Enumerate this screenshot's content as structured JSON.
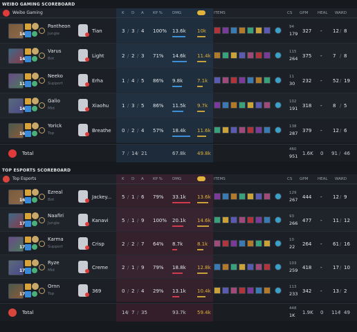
{
  "colors": {
    "blue_accent": "#3e8fd6",
    "red_accent": "#c23a5f",
    "gold": "#e3b33c",
    "bar_blue": "#3e8fd6",
    "bar_red": "#d23b4e"
  },
  "boards": [
    {
      "title": "WEIBO GAMING SCOREBOARD",
      "team_name": "Weibo Gaming",
      "side": "blue",
      "headers": {
        "k": "K",
        "d": "D",
        "a": "A",
        "kp": "KP %",
        "dmg": "DMG",
        "gold_icon": "gold-icon",
        "items": "ITEMS",
        "cs": "CS",
        "gpm": "GPM",
        "heal": "HEAL",
        "ward": "WARD"
      },
      "players": [
        {
          "champion": "Pantheon",
          "role": "Jungle",
          "level": "14",
          "player": "Tian",
          "k": "3",
          "d": "3",
          "a": "4",
          "kp": "100%",
          "dmg": "13.6k",
          "dmg_pct": 74,
          "gold": "10k",
          "gold_pct": 58,
          "cs_top": "94",
          "cs": "179",
          "gpm": "327",
          "heal": "-",
          "wards_placed": "12",
          "wards_killed": "8"
        },
        {
          "champion": "Varus",
          "role": "Bot",
          "level": "14",
          "player": "Light",
          "k": "2",
          "d": "2",
          "a": "3",
          "kp": "71%",
          "dmg": "14.6k",
          "dmg_pct": 80,
          "gold": "11.4k",
          "gold_pct": 66,
          "cs_top": "115",
          "cs": "264",
          "gpm": "375",
          "heal": "-",
          "wards_placed": "7",
          "wards_killed": "8"
        },
        {
          "champion": "Neeko",
          "role": "Support",
          "level": "11",
          "player": "Erha",
          "k": "1",
          "d": "4",
          "a": "5",
          "kp": "86%",
          "dmg": "9.8k",
          "dmg_pct": 53,
          "gold": "7.1k",
          "gold_pct": 41,
          "cs_top": "11",
          "cs": "30",
          "gpm": "232",
          "heal": "-",
          "wards_placed": "52",
          "wards_killed": "19"
        },
        {
          "champion": "Galio",
          "role": "Mid",
          "level": "14",
          "player": "Xiaohu",
          "k": "1",
          "d": "3",
          "a": "5",
          "kp": "86%",
          "dmg": "11.5k",
          "dmg_pct": 63,
          "gold": "9.7k",
          "gold_pct": 56,
          "cs_top": "102",
          "cs": "191",
          "gpm": "318",
          "heal": "-",
          "wards_placed": "8",
          "wards_killed": "5"
        },
        {
          "champion": "Yorick",
          "role": "Top",
          "level": "16",
          "player": "Breathe",
          "k": "0",
          "d": "2",
          "a": "4",
          "kp": "57%",
          "dmg": "18.4k",
          "dmg_pct": 100,
          "gold": "11.6k",
          "gold_pct": 67,
          "cs_top": "138",
          "cs": "287",
          "gpm": "379",
          "heal": "-",
          "wards_placed": "12",
          "wards_killed": "6"
        }
      ],
      "total": {
        "label": "Total",
        "k": "7",
        "d": "14",
        "a": "21",
        "dmg": "67.8k",
        "gold": "49.8k",
        "cs_top": "460",
        "cs": "951",
        "gpm": "1.6K",
        "heal": "0",
        "wards_placed": "91",
        "wards_killed": "46"
      }
    },
    {
      "title": "TOP ESPORTS SCOREBOARD",
      "team_name": "Top Esports",
      "side": "red",
      "headers": {
        "k": "K",
        "d": "D",
        "a": "A",
        "kp": "KP %",
        "dmg": "DMG",
        "gold_icon": "gold-icon",
        "items": "ITEMS",
        "cs": "CS",
        "gpm": "GPM",
        "heal": "HEAL",
        "ward": "WARD"
      },
      "players": [
        {
          "champion": "Ezreal",
          "role": "Bot",
          "level": "16",
          "player": "Jackey...",
          "k": "5",
          "d": "1",
          "a": "6",
          "kp": "79%",
          "dmg": "33.1k",
          "dmg_pct": 100,
          "gold": "13.6k",
          "gold_pct": 79,
          "cs_top": "129",
          "cs": "267",
          "gpm": "444",
          "heal": "-",
          "wards_placed": "12",
          "wards_killed": "9"
        },
        {
          "champion": "Naafiri",
          "role": "Jungle",
          "level": "17",
          "player": "Kanavi",
          "k": "5",
          "d": "1",
          "a": "9",
          "kp": "100%",
          "dmg": "20.1k",
          "dmg_pct": 61,
          "gold": "14.6k",
          "gold_pct": 85,
          "cs_top": "93",
          "cs": "266",
          "gpm": "477",
          "heal": "-",
          "wards_placed": "11",
          "wards_killed": "12"
        },
        {
          "champion": "Karma",
          "role": "Support",
          "level": "17",
          "player": "Crisp",
          "k": "2",
          "d": "2",
          "a": "7",
          "kp": "64%",
          "dmg": "8.7k",
          "dmg_pct": 26,
          "gold": "8.1k",
          "gold_pct": 47,
          "cs_top": "10",
          "cs": "22",
          "gpm": "264",
          "heal": "-",
          "wards_placed": "61",
          "wards_killed": "16"
        },
        {
          "champion": "Ryze",
          "role": "Mid",
          "level": "17",
          "player": "Creme",
          "k": "2",
          "d": "1",
          "a": "9",
          "kp": "79%",
          "dmg": "18.8k",
          "dmg_pct": 57,
          "gold": "12.8k",
          "gold_pct": 74,
          "cs_top": "103",
          "cs": "259",
          "gpm": "418",
          "heal": "-",
          "wards_placed": "17",
          "wards_killed": "10"
        },
        {
          "champion": "Ornn",
          "role": "Top",
          "level": "17",
          "player": "369",
          "k": "0",
          "d": "2",
          "a": "4",
          "kp": "29%",
          "dmg": "13.1k",
          "dmg_pct": 40,
          "gold": "10.4k",
          "gold_pct": 60,
          "cs_top": "113",
          "cs": "233",
          "gpm": "342",
          "heal": "-",
          "wards_placed": "13",
          "wards_killed": "2"
        }
      ],
      "total": {
        "label": "Total",
        "k": "14",
        "d": "7",
        "a": "35",
        "dmg": "93.7k",
        "gold": "59.4k",
        "cs_top": "448",
        "cs": "1K",
        "gpm": "1.9K",
        "heal": "0",
        "wards_placed": "114",
        "wards_killed": "49"
      }
    }
  ]
}
